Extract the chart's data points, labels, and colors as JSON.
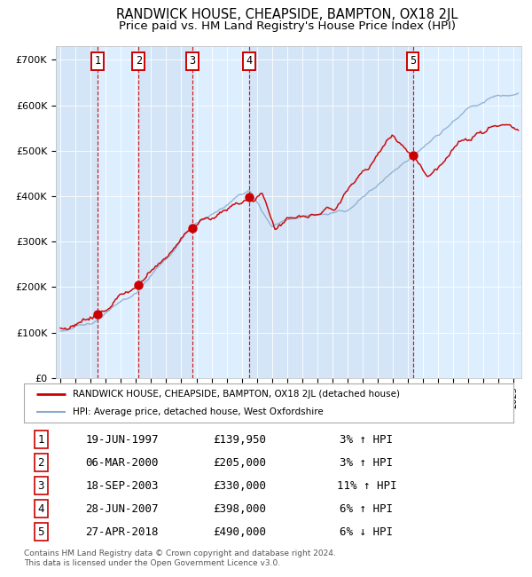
{
  "title": "RANDWICK HOUSE, CHEAPSIDE, BAMPTON, OX18 2JL",
  "subtitle": "Price paid vs. HM Land Registry's House Price Index (HPI)",
  "title_fontsize": 10.5,
  "subtitle_fontsize": 9.5,
  "xlim": [
    1994.7,
    2025.5
  ],
  "ylim": [
    0,
    730000
  ],
  "yticks": [
    0,
    100000,
    200000,
    300000,
    400000,
    500000,
    600000,
    700000
  ],
  "ytick_labels": [
    "£0",
    "£100K",
    "£200K",
    "£300K",
    "£400K",
    "£500K",
    "£600K",
    "£700K"
  ],
  "plot_bg_color": "#ddeeff",
  "grid_color": "#ffffff",
  "red_line_color": "#cc0000",
  "blue_line_color": "#88aacc",
  "sale_marker_color": "#cc0000",
  "vline_color": "#cc0000",
  "numbered_boxes": [
    {
      "num": 1,
      "year": 1997.47
    },
    {
      "num": 2,
      "year": 2000.17
    },
    {
      "num": 3,
      "year": 2003.72
    },
    {
      "num": 4,
      "year": 2007.48
    },
    {
      "num": 5,
      "year": 2018.32
    }
  ],
  "sales": [
    {
      "year": 1997.47,
      "price": 139950
    },
    {
      "year": 2000.17,
      "price": 205000
    },
    {
      "year": 2003.72,
      "price": 330000
    },
    {
      "year": 2007.48,
      "price": 398000
    },
    {
      "year": 2018.32,
      "price": 490000
    }
  ],
  "legend_entries": [
    {
      "label": "RANDWICK HOUSE, CHEAPSIDE, BAMPTON, OX18 2JL (detached house)",
      "color": "#cc0000",
      "lw": 2
    },
    {
      "label": "HPI: Average price, detached house, West Oxfordshire",
      "color": "#88aacc",
      "lw": 1.5
    }
  ],
  "table_rows": [
    {
      "num": 1,
      "date": "19-JUN-1997",
      "price": "£139,950",
      "pct": "3% ↑ HPI"
    },
    {
      "num": 2,
      "date": "06-MAR-2000",
      "price": "£205,000",
      "pct": "3% ↑ HPI"
    },
    {
      "num": 3,
      "date": "18-SEP-2003",
      "price": "£330,000",
      "pct": "11% ↑ HPI"
    },
    {
      "num": 4,
      "date": "28-JUN-2007",
      "price": "£398,000",
      "pct": "6% ↑ HPI"
    },
    {
      "num": 5,
      "date": "27-APR-2018",
      "price": "£490,000",
      "pct": "6% ↓ HPI"
    }
  ],
  "footer": "Contains HM Land Registry data © Crown copyright and database right 2024.\nThis data is licensed under the Open Government Licence v3.0."
}
